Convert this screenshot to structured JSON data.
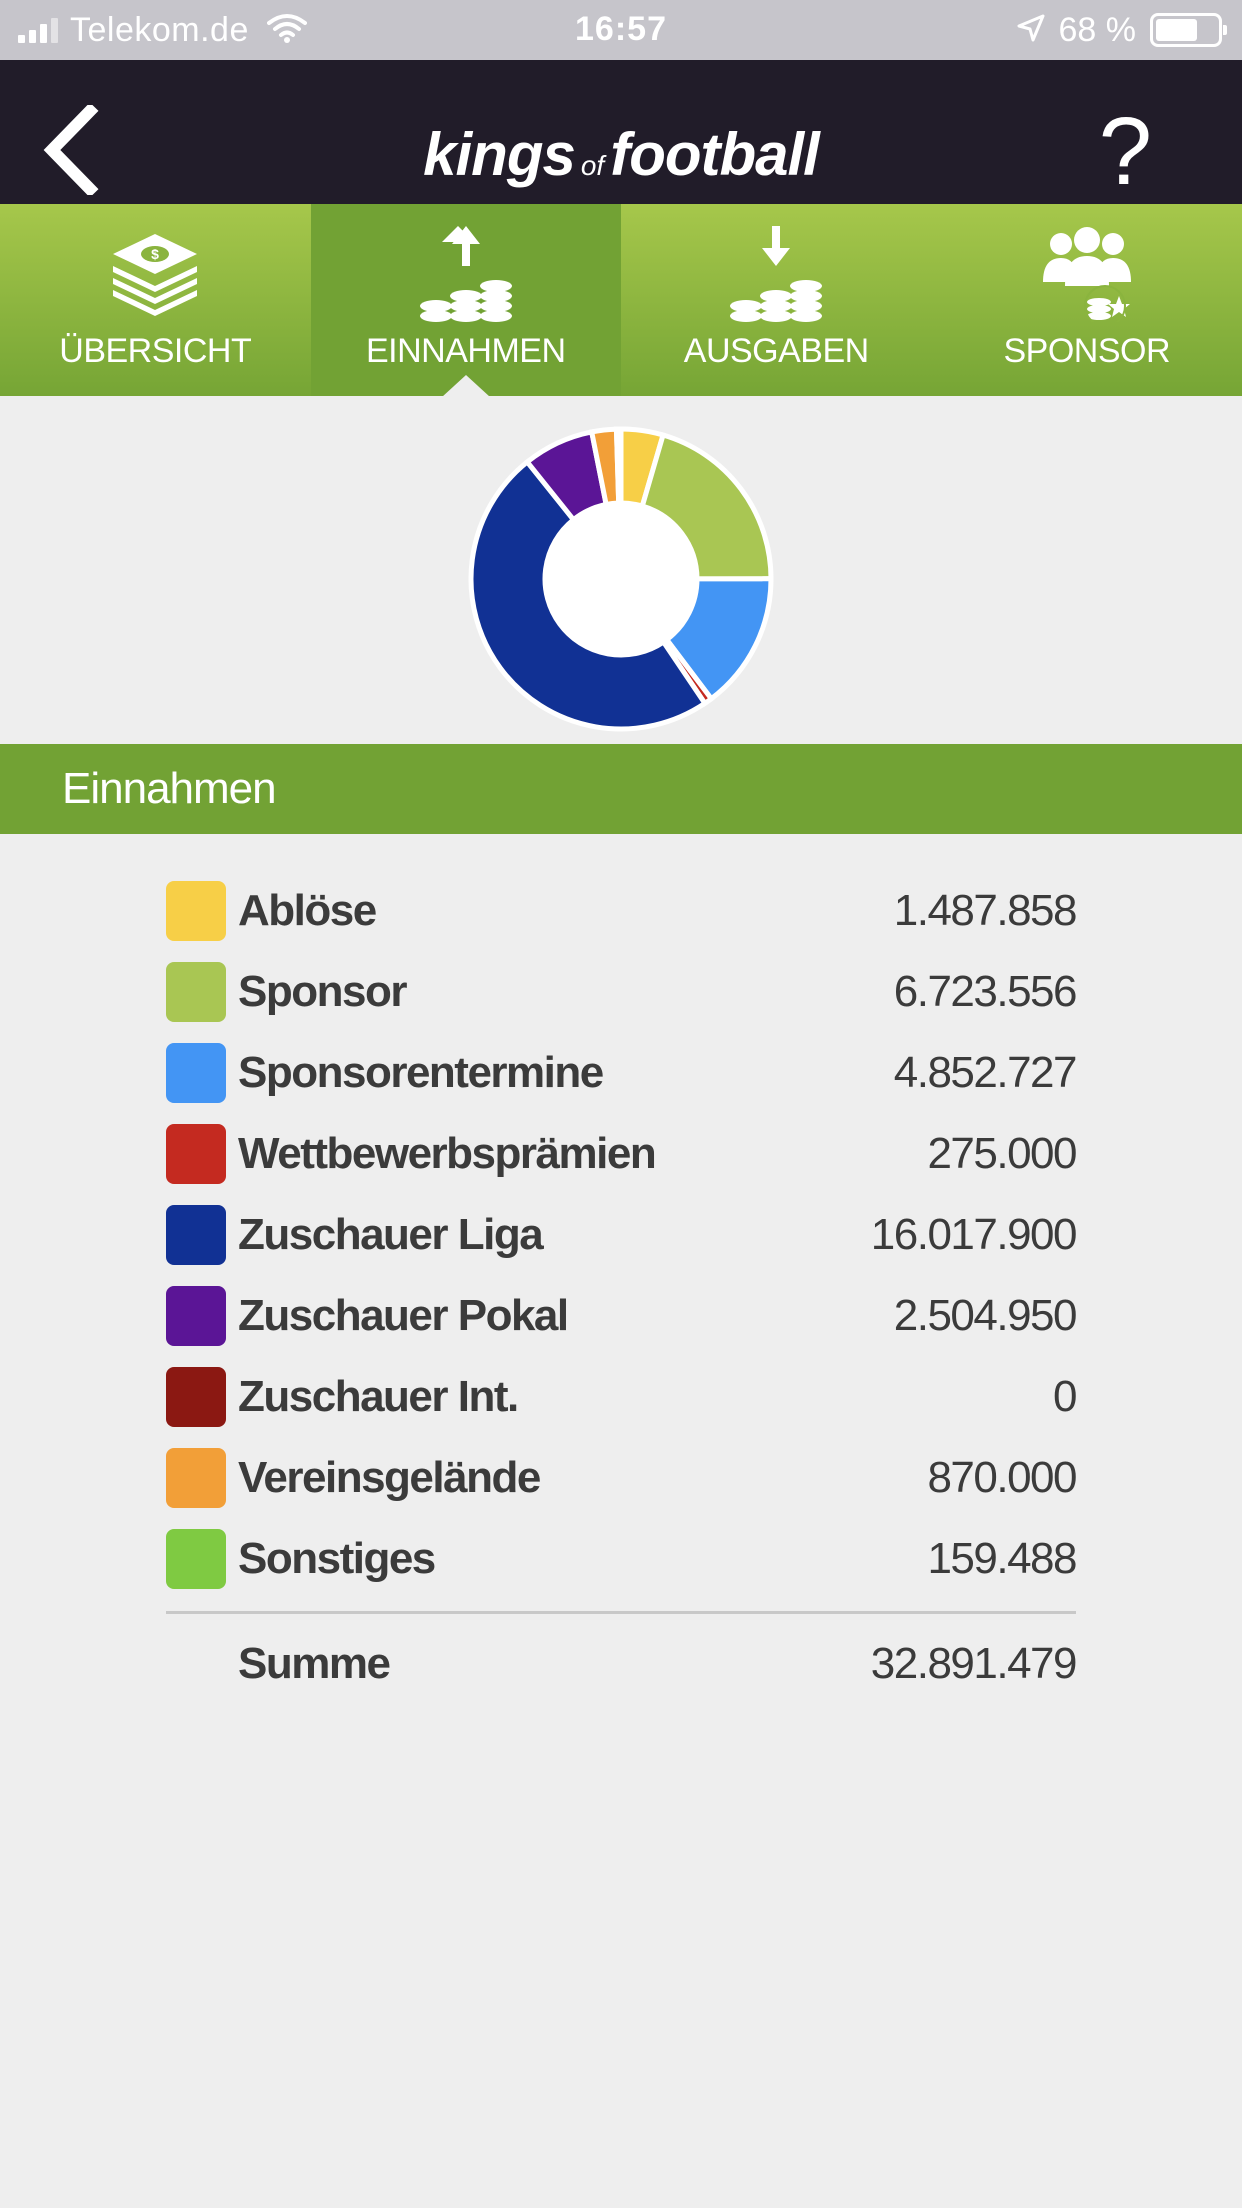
{
  "status_bar": {
    "carrier": "Telekom.de",
    "time": "16:57",
    "battery": "68 %",
    "battery_level": 0.68
  },
  "header": {
    "logo_part1": "kings",
    "logo_part2": "of",
    "logo_part3": "football",
    "help_label": "?"
  },
  "tabs": [
    {
      "label": "ÜBERSICHT",
      "icon": "money-stack-icon",
      "active": false
    },
    {
      "label": "EINNAHMEN",
      "icon": "coins-arrow-up-icon",
      "active": true
    },
    {
      "label": "AUSGABEN",
      "icon": "coins-arrow-down-icon",
      "active": false
    },
    {
      "label": "SPONSOR",
      "icon": "sponsor-people-icon",
      "active": false
    }
  ],
  "section_title": "Einnahmen",
  "income": [
    {
      "label": "Ablöse",
      "value": "1.487.858",
      "amount": 1487858,
      "color": "#f7cf47"
    },
    {
      "label": "Sponsor",
      "value": "6.723.556",
      "amount": 6723556,
      "color": "#a9c653"
    },
    {
      "label": "Sponsorentermine",
      "value": "4.852.727",
      "amount": 4852727,
      "color": "#4395f4"
    },
    {
      "label": "Wettbewerbsprämien",
      "value": "275.000",
      "amount": 275000,
      "color": "#c42a20"
    },
    {
      "label": "Zuschauer Liga",
      "value": "16.017.900",
      "amount": 16017900,
      "color": "#113194"
    },
    {
      "label": "Zuschauer Pokal",
      "value": "2.504.950",
      "amount": 2504950,
      "color": "#5b1596"
    },
    {
      "label": "Zuschauer Int.",
      "value": "0",
      "amount": 0,
      "color": "#8b1812"
    },
    {
      "label": "Vereinsgelände",
      "value": "870.000",
      "amount": 870000,
      "color": "#f29f38"
    },
    {
      "label": "Sonstiges",
      "value": "159.488",
      "amount": 159488,
      "color": "#7fca42"
    }
  ],
  "sum": {
    "label": "Summe",
    "value": "32.891.479"
  }
}
